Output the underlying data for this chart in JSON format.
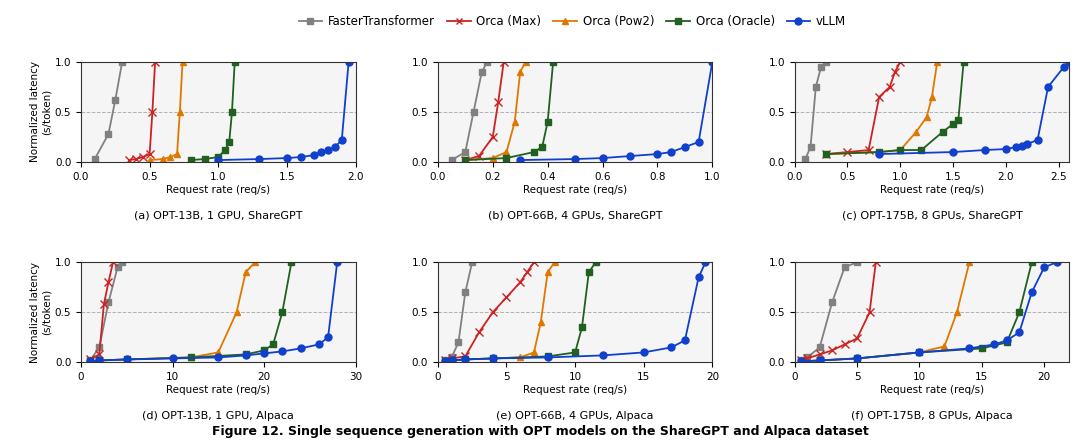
{
  "series": {
    "FasterTransformer": {
      "color": "#808080",
      "marker": "s",
      "markersize": 4,
      "linestyle": "-",
      "markerfacecolor": "#808080"
    },
    "Orca (Max)": {
      "color": "#cc2222",
      "marker": "x",
      "markersize": 6,
      "linestyle": "-",
      "markerfacecolor": "#cc2222"
    },
    "Orca (Pow2)": {
      "color": "#e07800",
      "marker": "^",
      "markersize": 5,
      "linestyle": "-",
      "markerfacecolor": "#e07800"
    },
    "Orca (Oracle)": {
      "color": "#206020",
      "marker": "s",
      "markersize": 5,
      "linestyle": "-",
      "markerfacecolor": "#206020"
    },
    "vLLM": {
      "color": "#1040cc",
      "marker": "o",
      "markersize": 5,
      "linestyle": "-",
      "markerfacecolor": "#1040cc"
    }
  },
  "subplot_titles": [
    "(a) OPT-13B, 1 GPU, ShareGPT",
    "(b) OPT-66B, 4 GPUs, ShareGPT",
    "(c) OPT-175B, 8 GPUs, ShareGPT",
    "(d) OPT-13B, 1 GPU, Alpaca",
    "(e) OPT-66B, 4 GPUs, Alpaca",
    "(f) OPT-175B, 8 GPUs, Alpaca"
  ],
  "figure_caption": "Figure 12. Single sequence generation with OPT models on the ShareGPT and Alpaca dataset",
  "plots": [
    {
      "id": "a",
      "xlim": [
        0.0,
        2.0
      ],
      "xticks": [
        0.0,
        0.5,
        1.0,
        1.5,
        2.0
      ],
      "ylim": [
        0.0,
        1.0
      ],
      "yticks": [
        0.0,
        0.5,
        1.0
      ],
      "data": {
        "FasterTransformer": {
          "x": [
            0.1,
            0.2,
            0.25,
            0.3
          ],
          "y": [
            0.03,
            0.28,
            0.62,
            1.0
          ]
        },
        "Orca (Max)": {
          "x": [
            0.35,
            0.4,
            0.45,
            0.5,
            0.52,
            0.54
          ],
          "y": [
            0.02,
            0.03,
            0.05,
            0.08,
            0.5,
            1.0
          ]
        },
        "Orca (Pow2)": {
          "x": [
            0.5,
            0.6,
            0.65,
            0.7,
            0.72,
            0.74
          ],
          "y": [
            0.02,
            0.03,
            0.05,
            0.08,
            0.5,
            1.0
          ]
        },
        "Orca (Oracle)": {
          "x": [
            0.8,
            0.9,
            1.0,
            1.05,
            1.08,
            1.1,
            1.12
          ],
          "y": [
            0.02,
            0.03,
            0.05,
            0.12,
            0.2,
            0.5,
            1.0
          ]
        },
        "vLLM": {
          "x": [
            1.0,
            1.3,
            1.5,
            1.6,
            1.7,
            1.75,
            1.8,
            1.85,
            1.9,
            1.95
          ],
          "y": [
            0.02,
            0.03,
            0.04,
            0.05,
            0.07,
            0.1,
            0.12,
            0.15,
            0.22,
            1.0
          ]
        }
      }
    },
    {
      "id": "b",
      "xlim": [
        0.0,
        1.0
      ],
      "xticks": [
        0.0,
        0.2,
        0.4,
        0.6,
        0.8,
        1.0
      ],
      "ylim": [
        0.0,
        1.0
      ],
      "yticks": [
        0.0,
        0.5,
        1.0
      ],
      "data": {
        "FasterTransformer": {
          "x": [
            0.05,
            0.1,
            0.13,
            0.16,
            0.18
          ],
          "y": [
            0.02,
            0.1,
            0.5,
            0.9,
            1.0
          ]
        },
        "Orca (Max)": {
          "x": [
            0.1,
            0.15,
            0.2,
            0.22,
            0.24
          ],
          "y": [
            0.02,
            0.06,
            0.25,
            0.6,
            1.0
          ]
        },
        "Orca (Pow2)": {
          "x": [
            0.1,
            0.2,
            0.25,
            0.28,
            0.3,
            0.32
          ],
          "y": [
            0.02,
            0.04,
            0.1,
            0.4,
            0.9,
            1.0
          ]
        },
        "Orca (Oracle)": {
          "x": [
            0.1,
            0.25,
            0.35,
            0.38,
            0.4,
            0.42
          ],
          "y": [
            0.02,
            0.04,
            0.1,
            0.15,
            0.4,
            1.0
          ]
        },
        "vLLM": {
          "x": [
            0.3,
            0.5,
            0.6,
            0.7,
            0.8,
            0.85,
            0.9,
            0.95,
            1.0
          ],
          "y": [
            0.02,
            0.03,
            0.04,
            0.06,
            0.08,
            0.1,
            0.15,
            0.2,
            1.0
          ]
        }
      }
    },
    {
      "id": "c",
      "xlim": [
        0.0,
        2.6
      ],
      "xticks": [
        0.0,
        0.5,
        1.0,
        1.5,
        2.0,
        2.5
      ],
      "ylim": [
        0.0,
        1.0
      ],
      "yticks": [
        0.0,
        0.5,
        1.0
      ],
      "data": {
        "FasterTransformer": {
          "x": [
            0.1,
            0.15,
            0.2,
            0.25,
            0.3
          ],
          "y": [
            0.03,
            0.15,
            0.75,
            0.95,
            1.0
          ]
        },
        "Orca (Max)": {
          "x": [
            0.3,
            0.5,
            0.7,
            0.8,
            0.9,
            0.95,
            1.0
          ],
          "y": [
            0.08,
            0.1,
            0.12,
            0.65,
            0.75,
            0.9,
            1.0
          ]
        },
        "Orca (Pow2)": {
          "x": [
            0.3,
            0.8,
            1.0,
            1.15,
            1.25,
            1.3,
            1.35
          ],
          "y": [
            0.08,
            0.1,
            0.12,
            0.3,
            0.45,
            0.65,
            1.0
          ]
        },
        "Orca (Oracle)": {
          "x": [
            0.3,
            0.8,
            1.0,
            1.2,
            1.4,
            1.5,
            1.55,
            1.6
          ],
          "y": [
            0.08,
            0.1,
            0.12,
            0.12,
            0.3,
            0.38,
            0.42,
            1.0
          ]
        },
        "vLLM": {
          "x": [
            0.8,
            1.5,
            1.8,
            2.0,
            2.1,
            2.15,
            2.2,
            2.3,
            2.4,
            2.55,
            2.6
          ],
          "y": [
            0.08,
            0.1,
            0.12,
            0.13,
            0.15,
            0.16,
            0.18,
            0.22,
            0.75,
            0.95,
            1.0
          ]
        }
      }
    },
    {
      "id": "d",
      "xlim": [
        0,
        30
      ],
      "xticks": [
        0,
        10,
        20,
        30
      ],
      "ylim": [
        0.0,
        1.0
      ],
      "yticks": [
        0.0,
        0.5,
        1.0
      ],
      "data": {
        "FasterTransformer": {
          "x": [
            1,
            2,
            3,
            4,
            4.5
          ],
          "y": [
            0.02,
            0.15,
            0.6,
            0.95,
            1.0
          ]
        },
        "Orca (Max)": {
          "x": [
            1,
            2,
            2.5,
            3.0,
            3.5
          ],
          "y": [
            0.03,
            0.08,
            0.58,
            0.8,
            1.0
          ]
        },
        "Orca (Pow2)": {
          "x": [
            1,
            2,
            5,
            12,
            15,
            17,
            18,
            19
          ],
          "y": [
            0.01,
            0.02,
            0.03,
            0.05,
            0.1,
            0.5,
            0.9,
            1.0
          ]
        },
        "Orca (Oracle)": {
          "x": [
            1,
            2,
            5,
            12,
            18,
            20,
            21,
            22,
            23
          ],
          "y": [
            0.01,
            0.02,
            0.03,
            0.05,
            0.08,
            0.12,
            0.18,
            0.5,
            1.0
          ]
        },
        "vLLM": {
          "x": [
            1,
            2,
            5,
            10,
            15,
            18,
            20,
            22,
            24,
            26,
            27,
            28
          ],
          "y": [
            0.01,
            0.02,
            0.03,
            0.04,
            0.05,
            0.07,
            0.09,
            0.11,
            0.14,
            0.18,
            0.25,
            1.0
          ]
        }
      }
    },
    {
      "id": "e",
      "xlim": [
        0,
        20
      ],
      "xticks": [
        0,
        5,
        10,
        15,
        20
      ],
      "ylim": [
        0.0,
        1.0
      ],
      "yticks": [
        0.0,
        0.5,
        1.0
      ],
      "data": {
        "FasterTransformer": {
          "x": [
            0.5,
            1,
            1.5,
            2,
            2.5
          ],
          "y": [
            0.02,
            0.05,
            0.2,
            0.7,
            1.0
          ]
        },
        "Orca (Max)": {
          "x": [
            0.5,
            1,
            2,
            3,
            4,
            5,
            6,
            6.5,
            7
          ],
          "y": [
            0.02,
            0.04,
            0.06,
            0.3,
            0.5,
            0.65,
            0.8,
            0.9,
            1.0
          ]
        },
        "Orca (Pow2)": {
          "x": [
            0.5,
            1,
            2,
            4,
            6,
            7,
            7.5,
            8,
            8.5
          ],
          "y": [
            0.01,
            0.02,
            0.03,
            0.04,
            0.05,
            0.1,
            0.4,
            0.9,
            1.0
          ]
        },
        "Orca (Oracle)": {
          "x": [
            0.5,
            1,
            2,
            4,
            8,
            10,
            10.5,
            11,
            11.5
          ],
          "y": [
            0.01,
            0.02,
            0.03,
            0.04,
            0.06,
            0.1,
            0.35,
            0.9,
            1.0
          ]
        },
        "vLLM": {
          "x": [
            0.5,
            1,
            2,
            4,
            8,
            12,
            15,
            17,
            18,
            19,
            19.5
          ],
          "y": [
            0.01,
            0.02,
            0.03,
            0.04,
            0.05,
            0.07,
            0.1,
            0.15,
            0.22,
            0.85,
            1.0
          ]
        }
      }
    },
    {
      "id": "f",
      "xlim": [
        0,
        22
      ],
      "xticks": [
        0,
        5,
        10,
        15,
        20
      ],
      "ylim": [
        0.0,
        1.0
      ],
      "yticks": [
        0.0,
        0.5,
        1.0
      ],
      "data": {
        "FasterTransformer": {
          "x": [
            0.5,
            1,
            2,
            3,
            4,
            5
          ],
          "y": [
            0.02,
            0.05,
            0.15,
            0.6,
            0.95,
            1.0
          ]
        },
        "Orca (Max)": {
          "x": [
            0.5,
            1,
            2,
            3,
            4,
            5,
            6,
            6.5
          ],
          "y": [
            0.02,
            0.04,
            0.08,
            0.12,
            0.18,
            0.24,
            0.5,
            1.0
          ]
        },
        "Orca (Pow2)": {
          "x": [
            0.5,
            2,
            5,
            10,
            12,
            13,
            14
          ],
          "y": [
            0.01,
            0.02,
            0.04,
            0.1,
            0.16,
            0.5,
            1.0
          ]
        },
        "Orca (Oracle)": {
          "x": [
            0.5,
            2,
            5,
            10,
            15,
            17,
            18,
            19
          ],
          "y": [
            0.01,
            0.02,
            0.04,
            0.1,
            0.14,
            0.2,
            0.5,
            1.0
          ]
        },
        "vLLM": {
          "x": [
            0.5,
            2,
            5,
            10,
            14,
            16,
            17,
            18,
            19,
            20,
            21
          ],
          "y": [
            0.01,
            0.02,
            0.04,
            0.1,
            0.14,
            0.18,
            0.22,
            0.3,
            0.7,
            0.95,
            1.0
          ]
        }
      }
    }
  ],
  "ylabel": "Normalized latency\n(s/token)",
  "xlabel": "Request rate (req/s)",
  "legend_order": [
    "FasterTransformer",
    "Orca (Max)",
    "Orca (Pow2)",
    "Orca (Oracle)",
    "vLLM"
  ],
  "grid_style": {
    "linestyle": "--",
    "color": "#aaaaaa",
    "linewidth": 0.7,
    "alpha": 0.9
  },
  "bg_color": "#f0f0f0"
}
